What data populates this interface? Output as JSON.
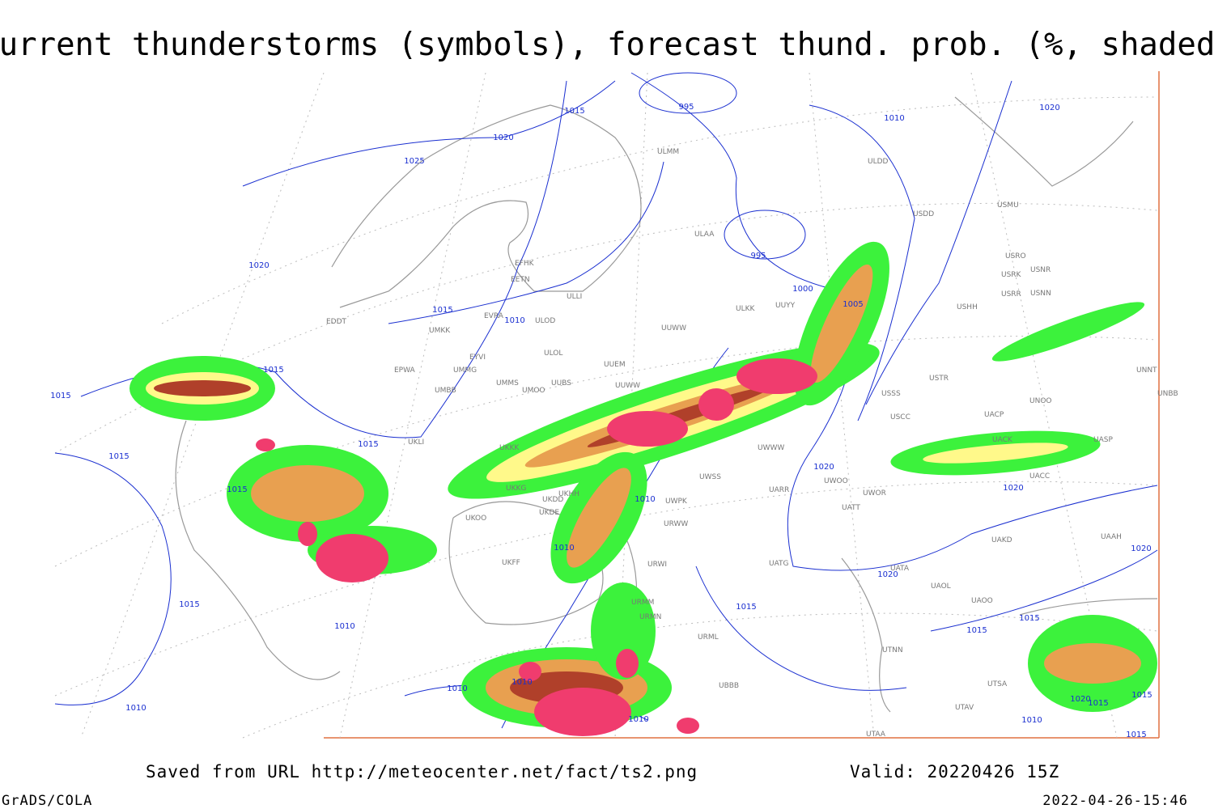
{
  "header": {
    "title": "Current thunderstorms (symbols), forecast thund. prob. (%, shaded)"
  },
  "footer": {
    "source": "Saved from URL http://meteocenter.net/fact/ts2.png",
    "valid": "Valid: 20220426 15Z",
    "software": "GrADS/COLA",
    "timestamp": "2022-04-26-15:46"
  },
  "map": {
    "isobar_labels": [
      "1015",
      "995",
      "1020",
      "1025",
      "1010",
      "1020",
      "1020",
      "995",
      "1000",
      "1005",
      "1015",
      "1010",
      "1015",
      "1015",
      "1015",
      "1015",
      "1015",
      "1020",
      "1020",
      "1010",
      "1010",
      "1020",
      "1020",
      "1015",
      "1015",
      "1010",
      "1015",
      "1015",
      "1010",
      "1010",
      "1010",
      "1010",
      "1015",
      "1020",
      "1015",
      "1010",
      "1015"
    ],
    "station_labels": [
      "ULMM",
      "ULDD",
      "USDD",
      "USMU",
      "ULAA",
      "EFHK",
      "EETN",
      "ULLI",
      "USRO",
      "USRK",
      "USNR",
      "USRR",
      "USNN",
      "ULKK",
      "UUYY",
      "USHH",
      "EVRA",
      "ULOD",
      "EDDT",
      "UMKK",
      "UUWW",
      "EYVI",
      "ULOL",
      "UUEM",
      "EPWA",
      "UMMG",
      "UMMS",
      "UMOO",
      "UUBS",
      "UUWW",
      "USTR",
      "UMBB",
      "USSS",
      "UNOO",
      "UNNT",
      "UNBB",
      "UACP",
      "USCC",
      "UACK",
      "UASP",
      "UWWW",
      "UKLI",
      "UKKK",
      "UACC",
      "UWSS",
      "UARR",
      "UWOO",
      "UWOR",
      "UATT",
      "UKKG",
      "UKDD",
      "UKHH",
      "UKDE",
      "UWPK",
      "UKOO",
      "UKFF",
      "UAKD",
      "UAAH",
      "UATG",
      "UATA",
      "UAOL",
      "UAOO",
      "URMM",
      "URMN",
      "URML",
      "UTNN",
      "UBBB",
      "UTAV",
      "UTSA",
      "UTAA",
      "URWW",
      "URWI"
    ]
  }
}
